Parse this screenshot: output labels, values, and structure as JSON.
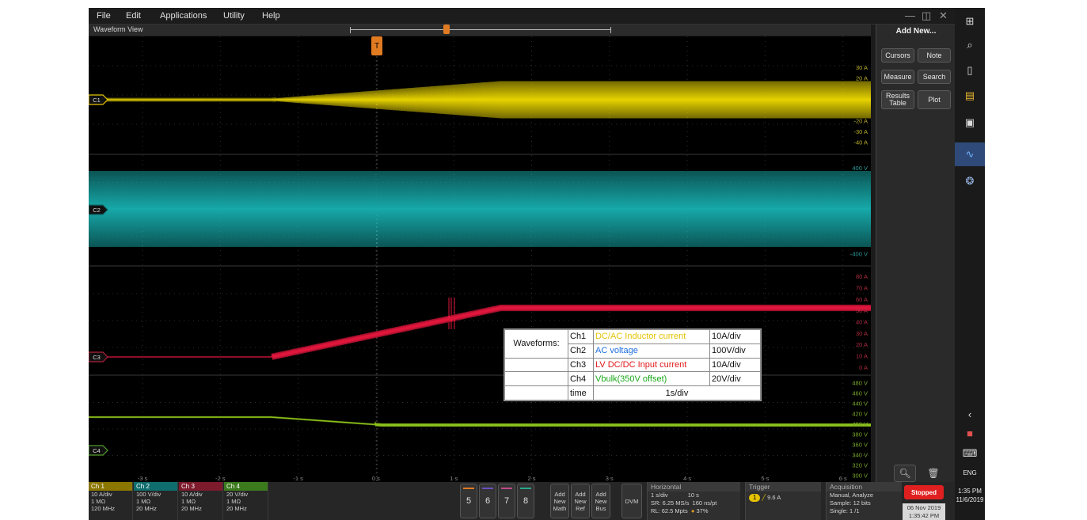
{
  "menu": {
    "items": [
      "File",
      "Edit",
      "Applications",
      "Utility",
      "Help"
    ],
    "window_controls": [
      "—",
      "◫",
      "✕"
    ]
  },
  "waveform_view": {
    "title": "Waveform View",
    "trigger_marker": "T"
  },
  "plot": {
    "channel_labels": [
      "C1",
      "C2",
      "C3",
      "C4"
    ],
    "ch1_scale": [
      "30 A",
      "20 A",
      "",
      "",
      "",
      "-20 A",
      "-30 A",
      "-40 A"
    ],
    "ch2_scale": [
      "400 V",
      "",
      "",
      "",
      "",
      "",
      "",
      "-400 V"
    ],
    "ch3_scale": [
      "80 A",
      "70 A",
      "60 A",
      "50 A",
      "40 A",
      "30 A",
      "20 A",
      "10 A",
      "0 A"
    ],
    "ch4_scale": [
      "480 V",
      "460 V",
      "440 V",
      "420 V",
      "400 V",
      "380 V",
      "360 V",
      "340 V",
      "320 V",
      "300 V"
    ],
    "time_ticks": [
      "-3 s",
      "-2 s",
      "-1 s",
      "0 s",
      "1 s",
      "2 s",
      "3 s",
      "4 s",
      "5 s",
      "6 s"
    ]
  },
  "legend": {
    "heading": "Waveforms:",
    "rows": [
      {
        "ch": "Ch1",
        "name": "DC/AC Inductor current",
        "scale": "10A/div",
        "color": "#e6c300"
      },
      {
        "ch": "Ch2",
        "name": "AC voltage",
        "scale": "100V/div",
        "color": "#1f6fe0"
      },
      {
        "ch": "Ch3",
        "name": "LV DC/DC Input current",
        "scale": "10A/div",
        "color": "#e01818"
      },
      {
        "ch": "Ch4",
        "name": "Vbulk(350V offset)",
        "scale": "20V/div",
        "color": "#18a818"
      }
    ],
    "time_label": "time",
    "time_value": "1s/div"
  },
  "right_panel": {
    "title": "Add New...",
    "buttons": [
      "Cursors",
      "Note",
      "Measure",
      "Search",
      "Results Table",
      "Plot"
    ]
  },
  "bottom": {
    "channels": [
      {
        "name": "Ch 1",
        "scale": "10 A/div",
        "imp": "1 MΩ",
        "bw": "120 MHz",
        "color": "#b8a000"
      },
      {
        "name": "Ch 2",
        "scale": "100 V/div",
        "imp": "1 MΩ",
        "bw": "20 MHz",
        "color": "#138f8f"
      },
      {
        "name": "Ch 3",
        "scale": "10 A/div",
        "imp": "1 MΩ",
        "bw": "20 MHz",
        "color": "#b0203a"
      },
      {
        "name": "Ch 4",
        "scale": "20 V/div",
        "imp": "1 MΩ",
        "bw": "20 MHz",
        "color": "#4f9a2a"
      }
    ],
    "num_buttons": [
      "5",
      "6",
      "7",
      "8"
    ],
    "add_buttons": [
      "Add New Math",
      "Add New Ref",
      "Add New Bus"
    ],
    "dvm": "DVM",
    "horizontal": {
      "title": "Horizontal",
      "l1a": "1 s/div",
      "l1b": "10 s",
      "l2a": "SR: 6.25 MS/s",
      "l2b": "160 ns/pt",
      "l3a": "RL: 62.5 Mpts",
      "l3b": "37%"
    },
    "trigger": {
      "title": "Trigger",
      "ch": "1",
      "level": "9.6 A"
    },
    "acquisition": {
      "title": "Acquisition",
      "l1": "Manual,   Analyze",
      "l2": "Sample: 12 bits",
      "l3": "Single: 1 /1"
    },
    "status": "Stopped",
    "date": "06 Nov 2019",
    "time": "1:35:42 PM"
  },
  "taskbar": {
    "time": "1:35 PM",
    "date": "11/6/2019",
    "lang": "ENG"
  }
}
